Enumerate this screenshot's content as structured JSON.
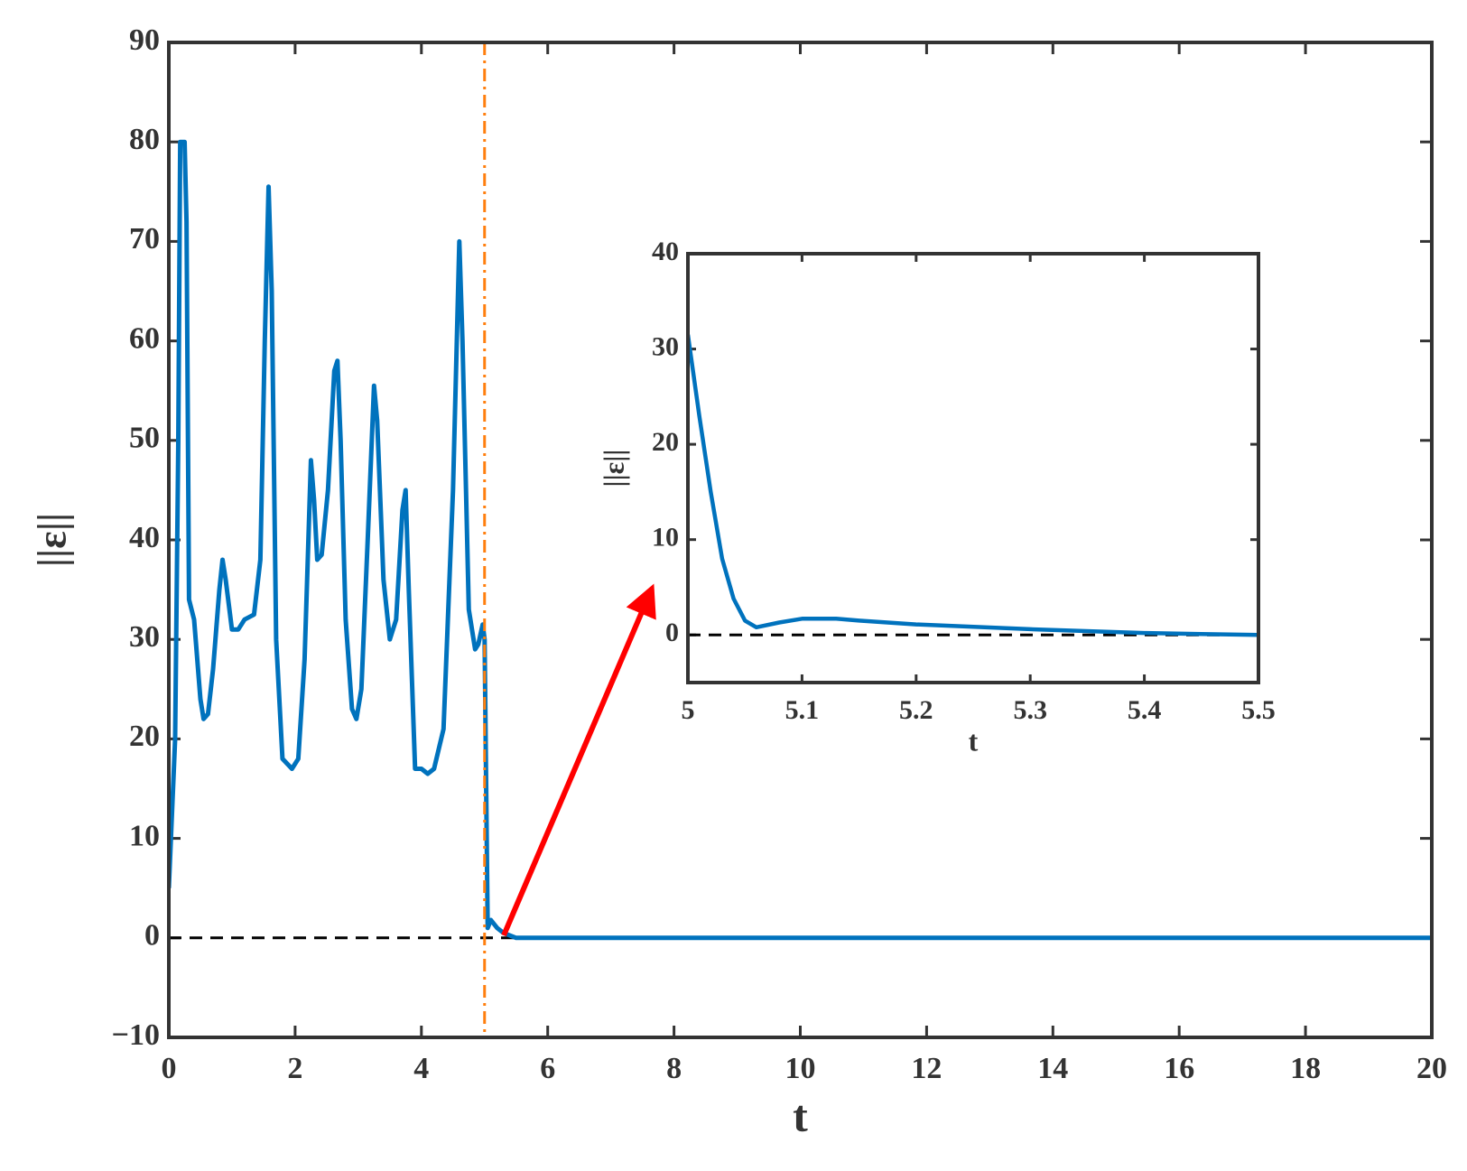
{
  "chart_data": [
    {
      "type": "line",
      "xlabel": "t",
      "ylabel": "||ε||",
      "xlim": [
        0,
        20
      ],
      "xticks": [
        0,
        2,
        4,
        6,
        8,
        10,
        12,
        14,
        16,
        18,
        20
      ],
      "ylim": [
        -10,
        90
      ],
      "yticks": [
        {
          "value": -10,
          "label": "−10"
        },
        0,
        10,
        20,
        30,
        40,
        50,
        60,
        70,
        80,
        90
      ],
      "hline": 0,
      "vline": 5,
      "vline_color": "#ff7f0e",
      "series": [
        {
          "color": "#0072bd",
          "x": [
            0,
            0.1,
            0.15,
            0.18,
            0.25,
            0.28,
            0.32,
            0.4,
            0.5,
            0.55,
            0.62,
            0.7,
            0.8,
            0.85,
            0.9,
            1.0,
            1.1,
            1.2,
            1.35,
            1.45,
            1.52,
            1.58,
            1.63,
            1.7,
            1.8,
            1.95,
            2.05,
            2.15,
            2.25,
            2.3,
            2.35,
            2.42,
            2.52,
            2.62,
            2.67,
            2.72,
            2.8,
            2.9,
            2.97,
            3.05,
            3.15,
            3.25,
            3.3,
            3.4,
            3.5,
            3.6,
            3.7,
            3.75,
            3.8,
            3.9,
            4.0,
            4.1,
            4.2,
            4.35,
            4.5,
            4.6,
            4.65,
            4.75,
            4.85,
            4.9,
            4.97,
            5.0,
            5.05,
            5.1,
            5.2,
            5.3,
            5.5,
            20
          ],
          "values": [
            5,
            20,
            50,
            80,
            80,
            72,
            34,
            32,
            24,
            22,
            22.5,
            27,
            35,
            38,
            36,
            31,
            31,
            32,
            32.5,
            38,
            60,
            75.5,
            65,
            30,
            18,
            17,
            18,
            28,
            48,
            44,
            38,
            38.5,
            45,
            57,
            58,
            50,
            32,
            23,
            22,
            25,
            40,
            55.5,
            52,
            36,
            30,
            32,
            43,
            45,
            35,
            17,
            17,
            16.5,
            17,
            21,
            45,
            70,
            60,
            33,
            29,
            29.5,
            31.5,
            30,
            1,
            1.8,
            1,
            0.5,
            0,
            0
          ]
        }
      ]
    },
    {
      "type": "line",
      "xlabel": "t",
      "ylabel": "||ε||",
      "xlim": [
        5,
        5.5
      ],
      "xticks": [
        5,
        5.1,
        5.2,
        5.3,
        5.4,
        5.5
      ],
      "ylim": [
        -5,
        40
      ],
      "yticks": [
        0,
        10,
        20,
        30,
        40
      ],
      "hline": 0,
      "series": [
        {
          "color": "#0072bd",
          "x": [
            5.0,
            5.01,
            5.02,
            5.03,
            5.04,
            5.05,
            5.06,
            5.08,
            5.1,
            5.13,
            5.15,
            5.2,
            5.3,
            5.4,
            5.45,
            5.5
          ],
          "values": [
            31.5,
            23,
            15,
            8,
            3.8,
            1.5,
            0.8,
            1.3,
            1.7,
            1.7,
            1.5,
            1.1,
            0.6,
            0.2,
            0.1,
            0
          ]
        }
      ]
    }
  ]
}
